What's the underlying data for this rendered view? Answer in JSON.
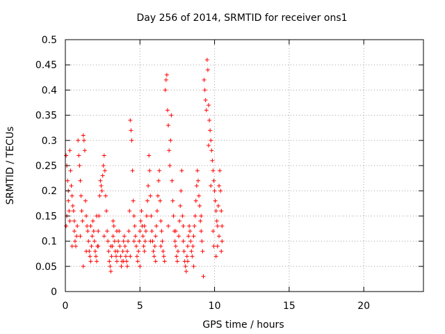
{
  "chart_data": {
    "type": "scatter",
    "title": "Day 256 of 2014, SRMTID for receiver ons1",
    "xlabel": "GPS time / hours",
    "ylabel": "SRMTID / TECUs",
    "xlim": [
      0,
      24
    ],
    "ylim": [
      0,
      0.5
    ],
    "xticks": [
      0,
      5,
      10,
      15,
      20
    ],
    "xtick_labels": [
      "0",
      "5",
      "10",
      "15",
      "20"
    ],
    "yticks": [
      0,
      0.05,
      0.1,
      0.15,
      0.2,
      0.25,
      0.3,
      0.35,
      0.4,
      0.45,
      0.5
    ],
    "ytick_labels": [
      "0",
      "0.05",
      "0.1",
      "0.15",
      "0.2",
      "0.25",
      "0.3",
      "0.35",
      "0.4",
      "0.45",
      "0.5"
    ],
    "grid": true,
    "marker": "+",
    "marker_color": "#ff0000",
    "series": [
      {
        "name": "SRMTID",
        "points": [
          [
            0.05,
            0.27
          ],
          [
            0.1,
            0.25
          ],
          [
            0.15,
            0.22
          ],
          [
            0.2,
            0.18
          ],
          [
            0.25,
            0.16
          ],
          [
            0.3,
            0.14
          ],
          [
            0.05,
            0.13
          ],
          [
            0.1,
            0.15
          ],
          [
            0.2,
            0.2
          ],
          [
            0.3,
            0.28
          ],
          [
            0.35,
            0.24
          ],
          [
            0.4,
            0.21
          ],
          [
            0.45,
            0.19
          ],
          [
            0.5,
            0.17
          ],
          [
            0.55,
            0.16
          ],
          [
            0.6,
            0.12
          ],
          [
            0.65,
            0.1
          ],
          [
            0.7,
            0.09
          ],
          [
            0.75,
            0.11
          ],
          [
            0.8,
            0.13
          ],
          [
            0.85,
            0.3
          ],
          [
            0.9,
            0.27
          ],
          [
            0.95,
            0.25
          ],
          [
            1.0,
            0.22
          ],
          [
            1.05,
            0.19
          ],
          [
            1.1,
            0.16
          ],
          [
            1.15,
            0.14
          ],
          [
            1.2,
            0.31
          ],
          [
            1.25,
            0.3
          ],
          [
            1.3,
            0.28
          ],
          [
            1.35,
            0.18
          ],
          [
            1.4,
            0.15
          ],
          [
            1.45,
            0.13
          ],
          [
            1.5,
            0.12
          ],
          [
            1.55,
            0.1
          ],
          [
            1.6,
            0.08
          ],
          [
            1.65,
            0.07
          ],
          [
            1.7,
            0.06
          ],
          [
            1.75,
            0.09
          ],
          [
            1.8,
            0.11
          ],
          [
            1.85,
            0.14
          ],
          [
            1.9,
            0.12
          ],
          [
            1.95,
            0.1
          ],
          [
            2.0,
            0.08
          ],
          [
            2.05,
            0.07
          ],
          [
            2.1,
            0.06
          ],
          [
            2.15,
            0.09
          ],
          [
            2.2,
            0.12
          ],
          [
            2.25,
            0.15
          ],
          [
            2.3,
            0.19
          ],
          [
            2.35,
            0.22
          ],
          [
            2.4,
            0.21
          ],
          [
            2.45,
            0.2
          ],
          [
            2.5,
            0.23
          ],
          [
            2.55,
            0.25
          ],
          [
            2.6,
            0.27
          ],
          [
            2.65,
            0.24
          ],
          [
            2.7,
            0.19
          ],
          [
            2.75,
            0.16
          ],
          [
            2.8,
            0.12
          ],
          [
            2.85,
            0.1
          ],
          [
            2.9,
            0.08
          ],
          [
            2.95,
            0.06
          ],
          [
            3.0,
            0.05
          ],
          [
            3.05,
            0.04
          ],
          [
            3.1,
            0.07
          ],
          [
            3.15,
            0.09
          ],
          [
            3.2,
            0.11
          ],
          [
            3.25,
            0.13
          ],
          [
            3.3,
            0.1
          ],
          [
            3.35,
            0.08
          ],
          [
            3.4,
            0.07
          ],
          [
            3.45,
            0.06
          ],
          [
            3.5,
            0.08
          ],
          [
            3.55,
            0.1
          ],
          [
            3.6,
            0.12
          ],
          [
            3.65,
            0.09
          ],
          [
            3.7,
            0.07
          ],
          [
            3.75,
            0.05
          ],
          [
            3.8,
            0.06
          ],
          [
            3.85,
            0.08
          ],
          [
            3.9,
            0.1
          ],
          [
            3.95,
            0.11
          ],
          [
            4.0,
            0.09
          ],
          [
            4.05,
            0.07
          ],
          [
            4.1,
            0.06
          ],
          [
            4.15,
            0.08
          ],
          [
            4.2,
            0.1
          ],
          [
            4.25,
            0.12
          ],
          [
            4.3,
            0.16
          ],
          [
            4.35,
            0.34
          ],
          [
            4.4,
            0.32
          ],
          [
            4.45,
            0.3
          ],
          [
            4.5,
            0.24
          ],
          [
            4.55,
            0.18
          ],
          [
            4.6,
            0.15
          ],
          [
            4.65,
            0.13
          ],
          [
            4.7,
            0.11
          ],
          [
            4.75,
            0.09
          ],
          [
            4.8,
            0.07
          ],
          [
            4.85,
            0.06
          ],
          [
            4.9,
            0.08
          ],
          [
            4.95,
            0.1
          ],
          [
            5.0,
            0.12
          ],
          [
            5.05,
            0.14
          ],
          [
            5.1,
            0.16
          ],
          [
            5.15,
            0.13
          ],
          [
            5.2,
            0.11
          ],
          [
            5.25,
            0.09
          ],
          [
            5.3,
            0.08
          ],
          [
            5.35,
            0.1
          ],
          [
            5.4,
            0.12
          ],
          [
            5.45,
            0.15
          ],
          [
            5.5,
            0.18
          ],
          [
            5.55,
            0.21
          ],
          [
            5.6,
            0.27
          ],
          [
            5.65,
            0.24
          ],
          [
            5.7,
            0.19
          ],
          [
            5.75,
            0.15
          ],
          [
            5.8,
            0.12
          ],
          [
            5.85,
            0.1
          ],
          [
            5.9,
            0.08
          ],
          [
            5.95,
            0.07
          ],
          [
            6.0,
            0.09
          ],
          [
            6.05,
            0.11
          ],
          [
            6.1,
            0.13
          ],
          [
            6.15,
            0.16
          ],
          [
            6.2,
            0.19
          ],
          [
            6.25,
            0.22
          ],
          [
            6.3,
            0.24
          ],
          [
            6.35,
            0.18
          ],
          [
            6.4,
            0.14
          ],
          [
            6.45,
            0.12
          ],
          [
            6.5,
            0.1
          ],
          [
            6.55,
            0.08
          ],
          [
            6.6,
            0.07
          ],
          [
            6.65,
            0.06
          ],
          [
            6.7,
            0.4
          ],
          [
            6.75,
            0.42
          ],
          [
            6.8,
            0.43
          ],
          [
            6.85,
            0.36
          ],
          [
            6.9,
            0.33
          ],
          [
            6.95,
            0.28
          ],
          [
            7.0,
            0.25
          ],
          [
            7.05,
            0.3
          ],
          [
            7.1,
            0.35
          ],
          [
            7.15,
            0.22
          ],
          [
            7.2,
            0.18
          ],
          [
            7.25,
            0.15
          ],
          [
            7.3,
            0.12
          ],
          [
            7.35,
            0.1
          ],
          [
            7.4,
            0.09
          ],
          [
            7.45,
            0.07
          ],
          [
            7.5,
            0.06
          ],
          [
            7.55,
            0.08
          ],
          [
            7.6,
            0.11
          ],
          [
            7.65,
            0.14
          ],
          [
            7.7,
            0.17
          ],
          [
            7.75,
            0.2
          ],
          [
            7.8,
            0.24
          ],
          [
            7.85,
            0.15
          ],
          [
            7.9,
            0.1
          ],
          [
            7.95,
            0.08
          ],
          [
            8.0,
            0.06
          ],
          [
            8.05,
            0.05
          ],
          [
            8.1,
            0.04
          ],
          [
            8.15,
            0.07
          ],
          [
            8.2,
            0.09
          ],
          [
            8.25,
            0.11
          ],
          [
            8.3,
            0.13
          ],
          [
            8.35,
            0.12
          ],
          [
            8.4,
            0.1
          ],
          [
            8.45,
            0.08
          ],
          [
            8.5,
            0.07
          ],
          [
            8.55,
            0.09
          ],
          [
            8.6,
            0.11
          ],
          [
            8.65,
            0.13
          ],
          [
            8.7,
            0.15
          ],
          [
            8.75,
            0.18
          ],
          [
            8.8,
            0.21
          ],
          [
            8.85,
            0.24
          ],
          [
            8.9,
            0.22
          ],
          [
            8.95,
            0.19
          ],
          [
            9.0,
            0.17
          ],
          [
            9.05,
            0.14
          ],
          [
            9.1,
            0.12
          ],
          [
            9.15,
            0.1
          ],
          [
            9.2,
            0.08
          ],
          [
            9.25,
            0.03
          ],
          [
            9.3,
            0.42
          ],
          [
            9.35,
            0.4
          ],
          [
            9.4,
            0.38
          ],
          [
            9.45,
            0.36
          ],
          [
            9.5,
            0.46
          ],
          [
            9.55,
            0.44
          ],
          [
            9.6,
            0.37
          ],
          [
            9.65,
            0.34
          ],
          [
            9.7,
            0.32
          ],
          [
            9.75,
            0.3
          ],
          [
            9.8,
            0.28
          ],
          [
            9.85,
            0.26
          ],
          [
            9.9,
            0.24
          ],
          [
            9.95,
            0.22
          ],
          [
            10.0,
            0.2
          ],
          [
            10.05,
            0.18
          ],
          [
            10.1,
            0.16
          ],
          [
            10.15,
            0.14
          ],
          [
            10.2,
            0.13
          ],
          [
            10.25,
            0.17
          ],
          [
            10.3,
            0.21
          ],
          [
            10.35,
            0.24
          ],
          [
            10.4,
            0.2
          ],
          [
            10.45,
            0.16
          ],
          [
            10.5,
            0.13
          ],
          [
            10.5,
            0.1
          ],
          [
            10.45,
            0.08
          ],
          [
            10.3,
            0.11
          ],
          [
            10.2,
            0.09
          ],
          [
            10.1,
            0.07
          ],
          [
            9.9,
            0.12
          ],
          [
            0.45,
            0.09
          ],
          [
            0.6,
            0.14
          ],
          [
            1.0,
            0.11
          ],
          [
            1.4,
            0.08
          ],
          [
            1.7,
            0.13
          ],
          [
            2.1,
            0.15
          ],
          [
            2.6,
            0.11
          ],
          [
            3.05,
            0.09
          ],
          [
            3.45,
            0.12
          ],
          [
            3.9,
            0.06
          ],
          [
            4.15,
            0.05
          ],
          [
            4.6,
            0.1
          ],
          [
            5.0,
            0.05
          ],
          [
            5.3,
            0.13
          ],
          [
            5.7,
            0.1
          ],
          [
            6.05,
            0.06
          ],
          [
            6.4,
            0.09
          ],
          [
            6.9,
            0.13
          ],
          [
            7.4,
            0.12
          ],
          [
            7.9,
            0.13
          ],
          [
            8.2,
            0.06
          ],
          [
            8.6,
            0.05
          ],
          [
            9.1,
            0.15
          ],
          [
            9.6,
            0.29
          ],
          [
            9.75,
            0.21
          ],
          [
            9.95,
            0.09
          ],
          [
            4.35,
            0.07
          ],
          [
            3.2,
            0.14
          ],
          [
            2.2,
            0.09
          ],
          [
            1.2,
            0.05
          ]
        ]
      }
    ]
  }
}
